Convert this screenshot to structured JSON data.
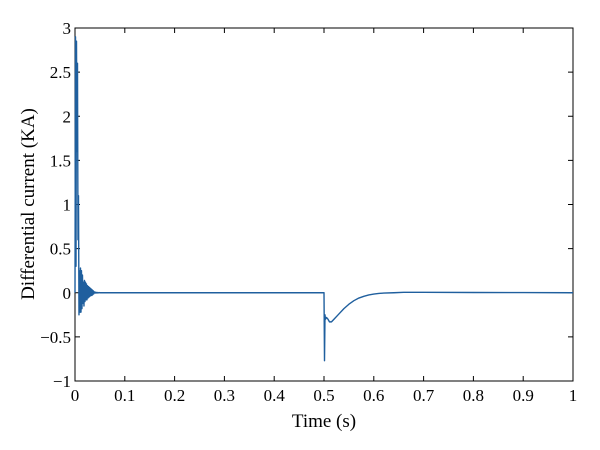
{
  "chart_data": {
    "type": "line",
    "title": "",
    "xlabel": "Time (s)",
    "ylabel": "Differential current (KA)",
    "xlim": [
      0,
      1
    ],
    "ylim": [
      -1,
      3
    ],
    "grid": false,
    "x_ticks": [
      0,
      0.1,
      0.2,
      0.3,
      0.4,
      0.5,
      0.6,
      0.7,
      0.8,
      0.9,
      1
    ],
    "x_tick_labels": [
      "0",
      "0.1",
      "0.2",
      "0.3",
      "0.4",
      "0.5",
      "0.6",
      "0.7",
      "0.8",
      "0.9",
      "1"
    ],
    "y_ticks": [
      -1,
      -0.5,
      0,
      0.5,
      1,
      1.5,
      2,
      2.5,
      3
    ],
    "y_tick_labels": [
      "−1",
      "−0.5",
      "0",
      "0.5",
      "1",
      "1.5",
      "2",
      "2.5",
      "3"
    ],
    "line_color": "#1f5f9e",
    "series": [
      {
        "x": [
          0,
          0.001,
          0.002,
          0.003,
          0.004,
          0.005,
          0.006,
          0.007,
          0.008,
          0.009,
          0.01,
          0.011,
          0.012,
          0.013,
          0.014,
          0.015,
          0.016,
          0.017,
          0.018,
          0.019,
          0.02,
          0.021,
          0.022,
          0.023,
          0.024,
          0.025,
          0.026,
          0.027,
          0.028,
          0.029,
          0.03,
          0.031,
          0.032,
          0.033,
          0.034,
          0.035,
          0.036,
          0.037,
          0.038,
          0.04,
          0.042,
          0.044,
          0.046,
          0.048,
          0.05,
          0.055,
          0.06,
          0.07,
          0.1,
          0.2,
          0.3,
          0.4,
          0.499,
          0.5,
          0.501,
          0.502,
          0.503,
          0.505,
          0.508,
          0.511,
          0.515,
          0.52,
          0.53,
          0.54,
          0.55,
          0.56,
          0.57,
          0.58,
          0.59,
          0.6,
          0.61,
          0.62,
          0.64,
          0.66,
          0.7,
          0.8,
          0.9,
          1.0
        ],
        "y": [
          0,
          2.9,
          0.3,
          2.85,
          1.6,
          2.6,
          0.6,
          1.1,
          -0.25,
          0.25,
          -0.22,
          0.28,
          -0.22,
          0.25,
          -0.18,
          0.2,
          -0.12,
          0.12,
          -0.15,
          0.14,
          -0.1,
          0.12,
          -0.08,
          0.1,
          -0.08,
          0.08,
          -0.06,
          0.07,
          -0.05,
          0.06,
          -0.04,
          0.05,
          -0.03,
          0.04,
          -0.03,
          0.03,
          -0.02,
          0.02,
          -0.01,
          0.01,
          -0.005,
          0.005,
          -0.003,
          0.002,
          0,
          0,
          0,
          0,
          0,
          0,
          0,
          0,
          0,
          0,
          -0.77,
          -0.25,
          -0.3,
          -0.28,
          -0.3,
          -0.33,
          -0.33,
          -0.3,
          -0.24,
          -0.18,
          -0.13,
          -0.09,
          -0.06,
          -0.04,
          -0.025,
          -0.015,
          -0.008,
          -0.004,
          0,
          0.005,
          0.005,
          0.003,
          0.002,
          0
        ]
      }
    ]
  }
}
